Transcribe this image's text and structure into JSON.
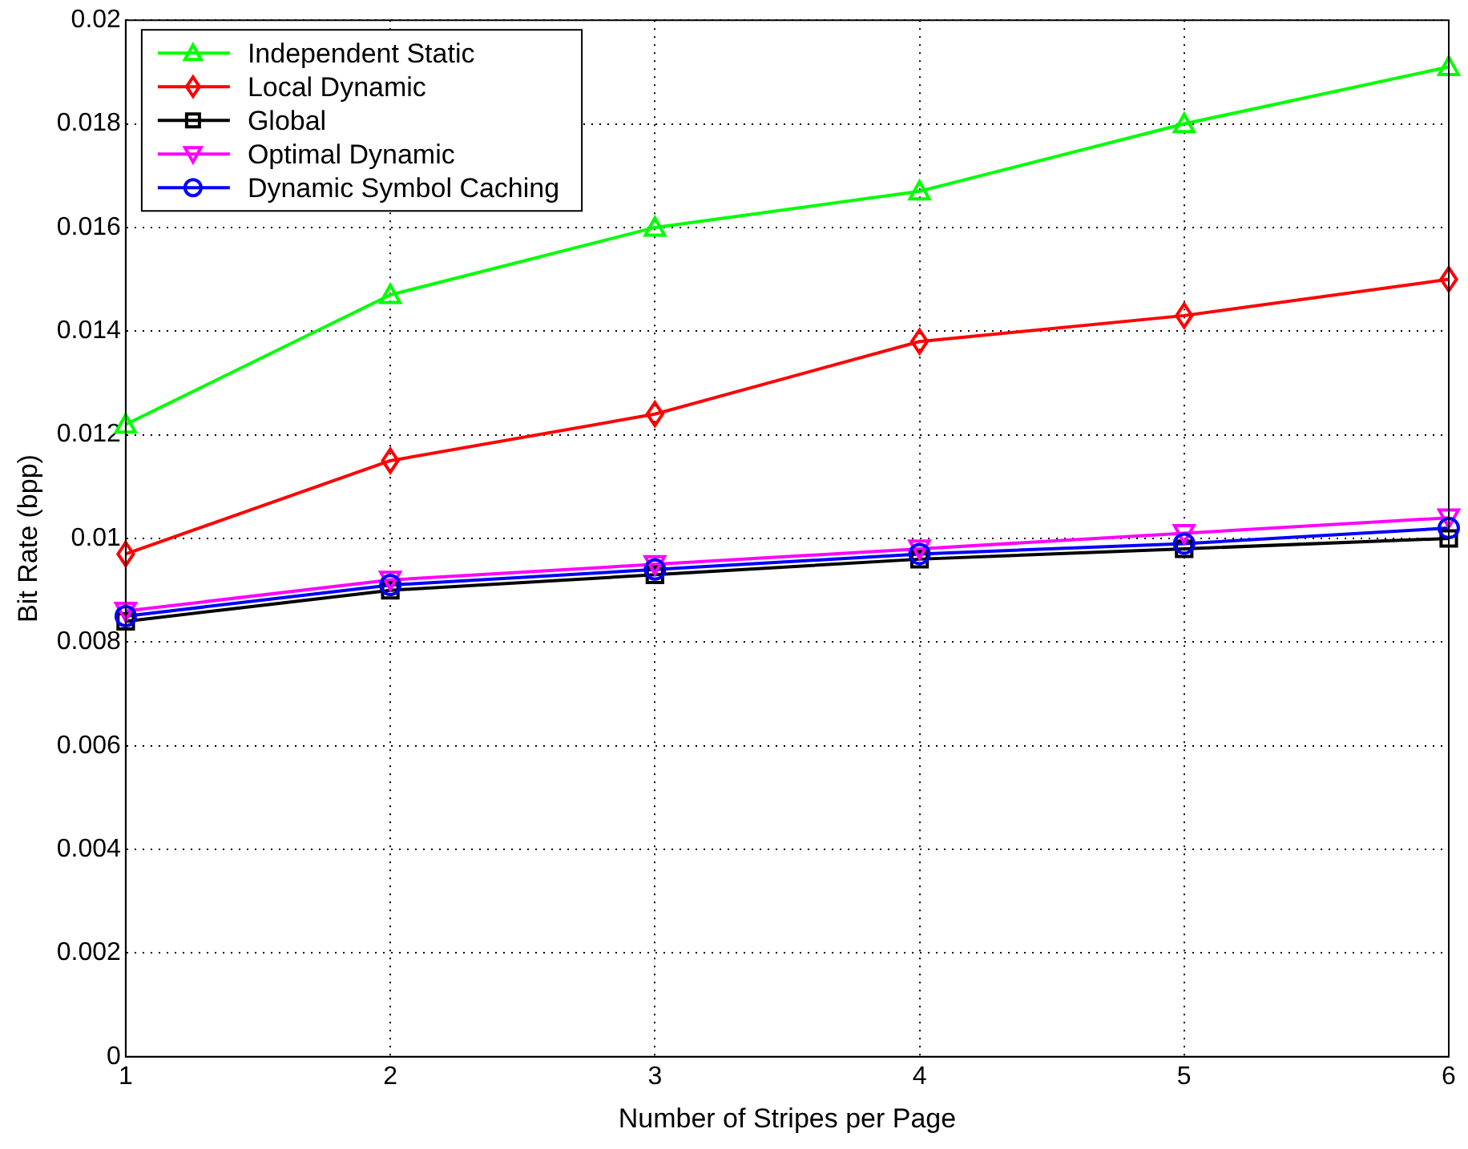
{
  "chart_data": {
    "type": "line",
    "xlabel": "Number of Stripes per Page",
    "ylabel": "Bit Rate (bpp)",
    "x": [
      1,
      2,
      3,
      4,
      5,
      6
    ],
    "series": [
      {
        "name": "Independent Static",
        "color": "#00ff00",
        "marker": "triangle",
        "values": [
          0.0122,
          0.0147,
          0.016,
          0.0167,
          0.018,
          0.0191
        ]
      },
      {
        "name": "Local Dynamic",
        "color": "#ff0000",
        "marker": "diamond",
        "values": [
          0.0097,
          0.0115,
          0.0124,
          0.0138,
          0.0143,
          0.015
        ]
      },
      {
        "name": "Global",
        "color": "#000000",
        "marker": "square",
        "values": [
          0.0084,
          0.009,
          0.0093,
          0.0096,
          0.0098,
          0.01
        ]
      },
      {
        "name": "Optimal Dynamic",
        "color": "#ff00ff",
        "marker": "triangle-down",
        "values": [
          0.0086,
          0.0092,
          0.0095,
          0.0098,
          0.0101,
          0.0104
        ]
      },
      {
        "name": "Dynamic Symbol Caching",
        "color": "#0000ff",
        "marker": "circle",
        "values": [
          0.0085,
          0.0091,
          0.0094,
          0.0097,
          0.0099,
          0.0102
        ]
      }
    ],
    "xlim": [
      1,
      6
    ],
    "xticks": [
      1,
      2,
      3,
      4,
      5,
      6
    ],
    "ylim": [
      0,
      0.02
    ],
    "yticks": [
      0,
      0.002,
      0.004,
      0.006,
      0.008,
      0.01,
      0.012,
      0.014,
      0.016,
      0.018,
      0.02
    ],
    "grid": true,
    "legend": "top left",
    "line_style": "solid"
  }
}
